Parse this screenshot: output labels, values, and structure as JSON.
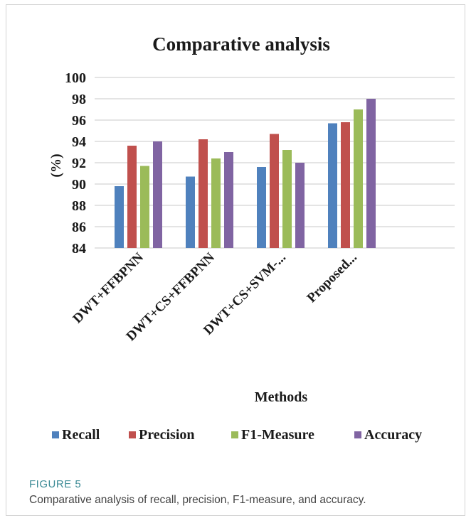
{
  "chart_data": {
    "type": "bar",
    "title": "Comparative  analysis",
    "xlabel": "Methods",
    "ylabel": "(%)",
    "ylim": [
      84,
      100
    ],
    "yticks": [
      84,
      86,
      88,
      90,
      92,
      94,
      96,
      98,
      100
    ],
    "grid": true,
    "legend_position": "bottom",
    "categories": [
      "DWT+FFBPNN",
      "DWT+CS+FFBPNN",
      "DWT+CS+SVM-...",
      "Proposed..."
    ],
    "series": [
      {
        "name": "Recall",
        "color": "#4f81bd",
        "values": [
          89.8,
          90.7,
          91.6,
          95.7
        ]
      },
      {
        "name": "Precision",
        "color": "#c0504d",
        "values": [
          93.6,
          94.2,
          94.7,
          95.8
        ]
      },
      {
        "name": "F1-Measure",
        "color": "#9bbb59",
        "values": [
          91.7,
          92.4,
          93.2,
          97.0
        ]
      },
      {
        "name": "Accuracy",
        "color": "#8064a2",
        "values": [
          94.0,
          93.0,
          92.0,
          98.0
        ]
      }
    ]
  },
  "caption": {
    "label": "FIGURE 5",
    "text": "Comparative analysis of recall, precision, F1-measure, and accuracy."
  }
}
